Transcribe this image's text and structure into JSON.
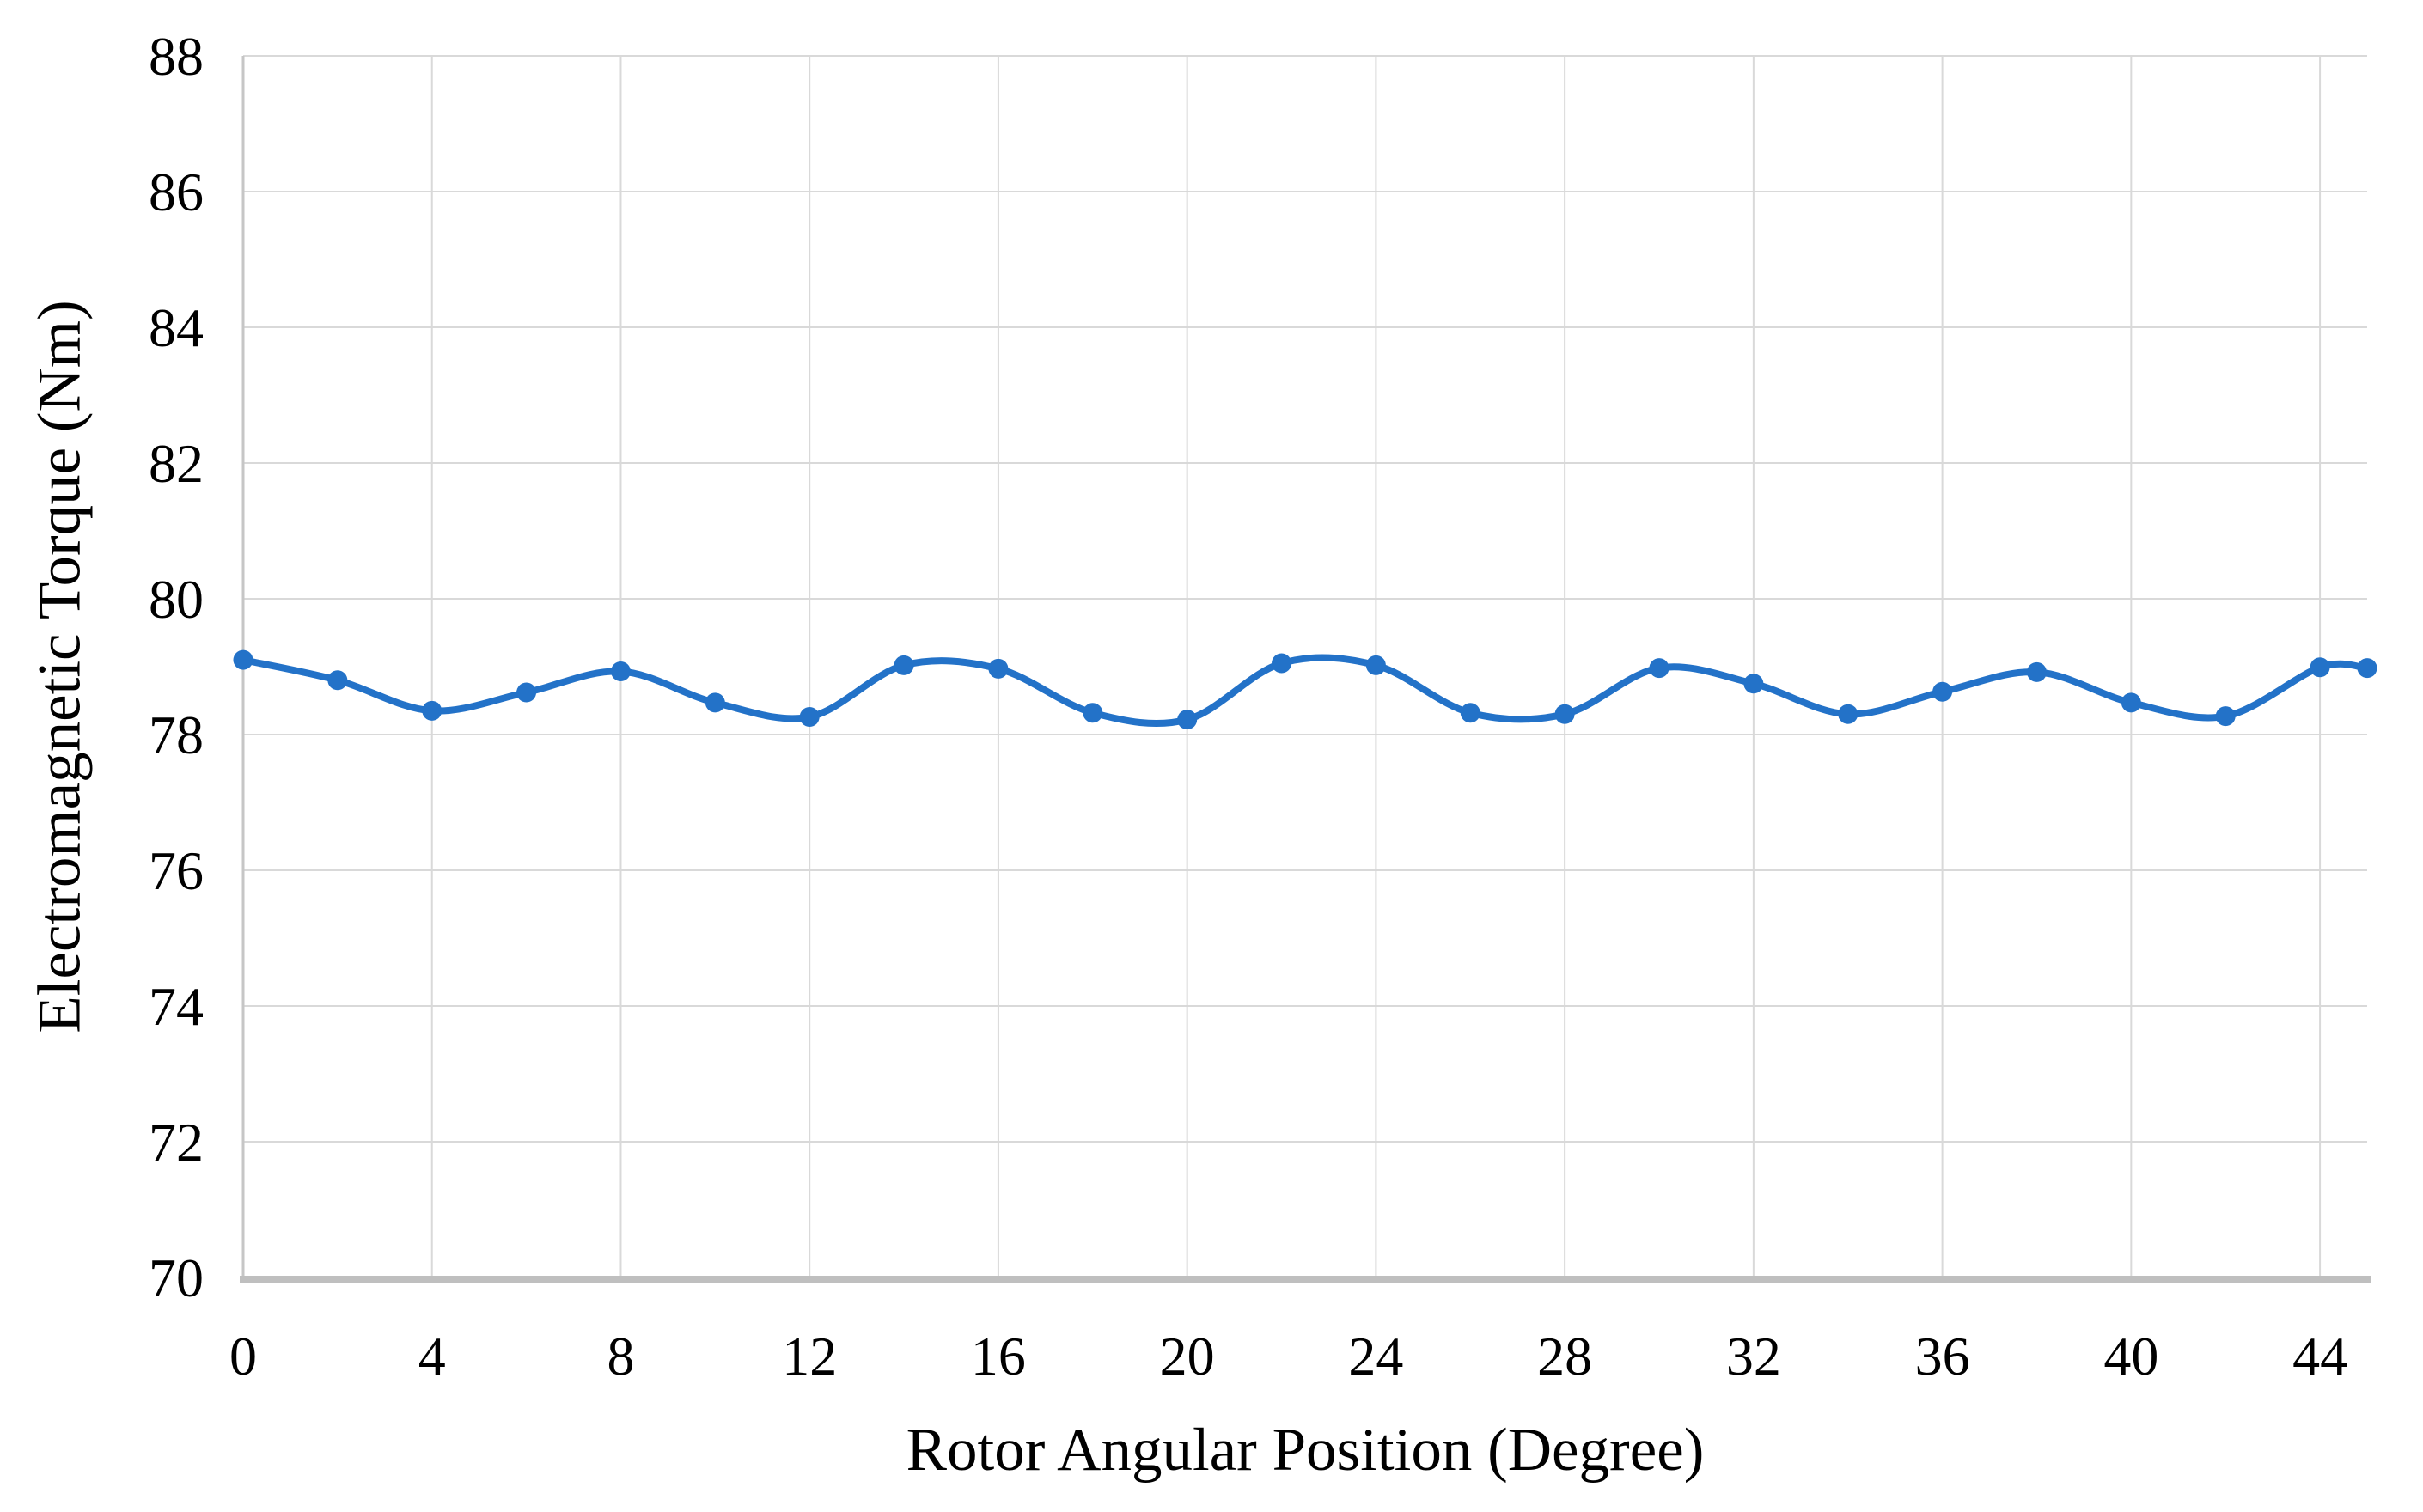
{
  "chart_data": {
    "type": "line",
    "title": "",
    "xlabel": "Rotor Angular Position (Degree)",
    "ylabel": "Electromagnetic Torque (Nm)",
    "x": [
      0,
      2,
      4,
      6,
      8,
      10,
      12,
      14,
      16,
      18,
      20,
      22,
      24,
      26,
      28,
      30,
      32,
      34,
      36,
      38,
      40,
      42,
      44,
      45
    ],
    "series": [
      {
        "name": "Electromagnetic Torque",
        "color": "#2372C8",
        "marker": "circle",
        "smooth": true,
        "values": [
          79.1,
          78.8,
          78.35,
          78.62,
          78.93,
          78.47,
          78.26,
          79.02,
          78.97,
          78.32,
          78.22,
          79.05,
          79.02,
          78.32,
          78.3,
          78.98,
          78.75,
          78.3,
          78.63,
          78.92,
          78.47,
          78.27,
          78.99,
          78.98
        ]
      }
    ],
    "xlim": [
      0,
      45
    ],
    "ylim": [
      70,
      88
    ],
    "x_ticks": [
      0,
      4,
      8,
      12,
      16,
      20,
      24,
      28,
      32,
      36,
      40,
      44
    ],
    "y_ticks": [
      70,
      72,
      74,
      76,
      78,
      80,
      82,
      84,
      86,
      88
    ],
    "grid": {
      "horizontal": true,
      "vertical": true,
      "color": "#D9D9D9"
    },
    "axis_color": "#BFBFBF",
    "text_color": "#000000",
    "background": "#FFFFFF",
    "legend_position": "none"
  }
}
